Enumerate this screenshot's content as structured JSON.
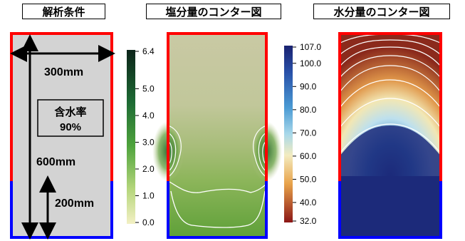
{
  "panels": {
    "conditions": {
      "title": "解析条件",
      "width_label": "300mm",
      "moisture_label_line1": "含水率",
      "moisture_label_line2": "90%",
      "height_label": "600mm",
      "sub_height_label": "200mm"
    },
    "salt": {
      "title": "塩分量のコンター図",
      "colorbar_ticks": [
        "6.4",
        "5.0",
        "4.0",
        "3.0",
        "2.0",
        "1.0",
        "0.0"
      ],
      "colorbar_values": [
        6.4,
        5.0,
        4.0,
        3.0,
        2.0,
        1.0,
        0.0
      ],
      "range": [
        0.0,
        6.4
      ],
      "colors": {
        "low": "#f2f0c2",
        "mid": "#4fa13a",
        "high": "#0f2e20"
      }
    },
    "water": {
      "title": "水分量のコンター図",
      "colorbar_ticks": [
        "107.0",
        "100.0",
        "90.0",
        "80.0",
        "70.0",
        "60.0",
        "50.0",
        "40.0",
        "32.0"
      ],
      "colorbar_values": [
        107.0,
        100.0,
        90.0,
        80.0,
        70.0,
        60.0,
        50.0,
        40.0,
        32.0
      ],
      "range": [
        32.0,
        107.0
      ],
      "colors": {
        "low": "#8b1a1a",
        "mid": "#f4eab8",
        "high": "#1c2a7a"
      }
    }
  },
  "colors": {
    "upper_boundary": "#ff0000",
    "lower_boundary": "#0000ff",
    "model_fill": "#d3d3d3"
  }
}
